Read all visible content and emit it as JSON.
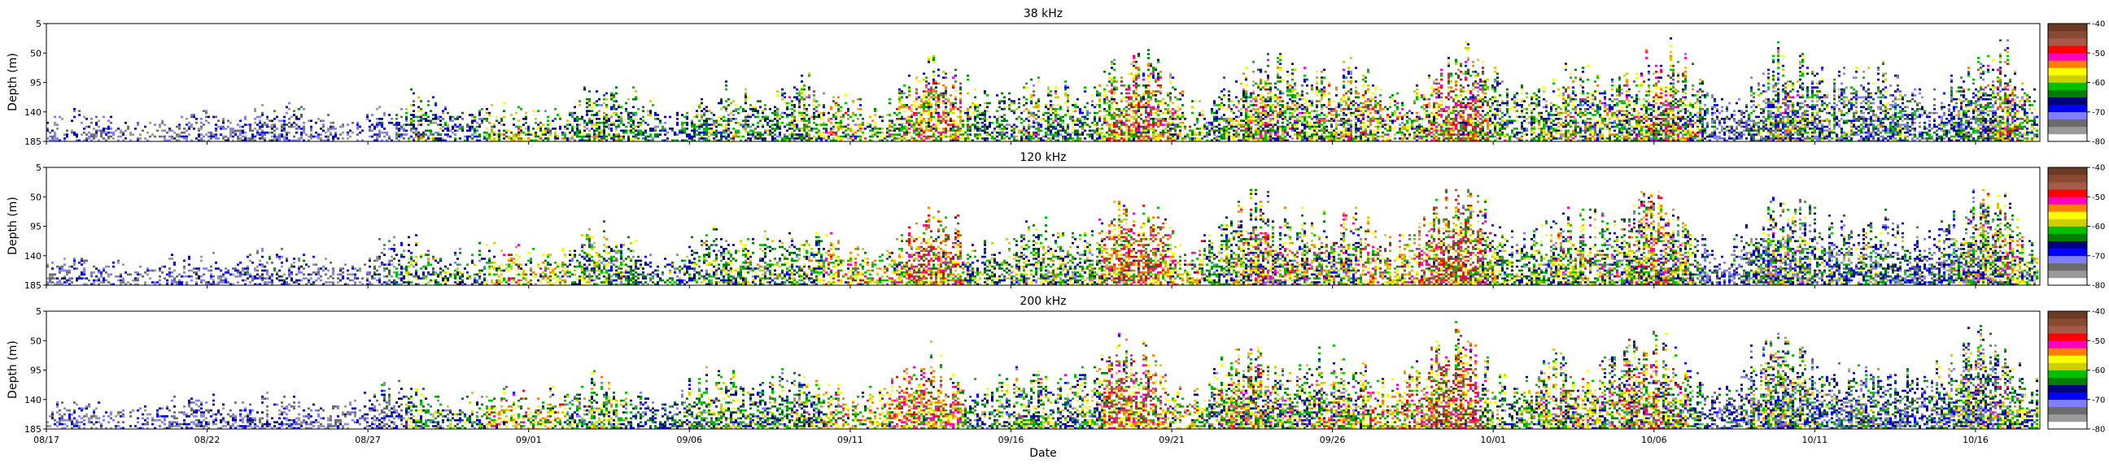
{
  "chart_data": {
    "type": "heatmap",
    "xlabel": "Date",
    "x_tick_labels": [
      "08/17",
      "08/22",
      "08/27",
      "09/01",
      "09/06",
      "09/11",
      "09/16",
      "09/21",
      "09/26",
      "10/01",
      "10/06",
      "10/11",
      "10/16"
    ],
    "x_range_days": [
      0,
      62
    ],
    "ylabel": "Depth (m)",
    "y_tick_labels": [
      "5",
      "50",
      "95",
      "140",
      "185"
    ],
    "ylim": [
      5,
      185
    ],
    "colorbar": {
      "min": -80,
      "max": -40,
      "tick_labels": [
        "-40",
        "-50",
        "-60",
        "-70",
        "-80"
      ],
      "colors_low_to_high": [
        "#ffffff",
        "#9a9a9a",
        "#6b6b6b",
        "#7f7fff",
        "#0000ff",
        "#00007f",
        "#007f00",
        "#00c000",
        "#cfcf00",
        "#ffff00",
        "#ff8000",
        "#ff00bf",
        "#ff0000",
        "#a65a4a",
        "#884a31",
        "#6b3a24"
      ]
    },
    "panels": [
      {
        "title": "38 kHz",
        "seed": 38
      },
      {
        "title": "120 kHz",
        "seed": 120
      },
      {
        "title": "200 kHz",
        "seed": 200
      }
    ]
  }
}
